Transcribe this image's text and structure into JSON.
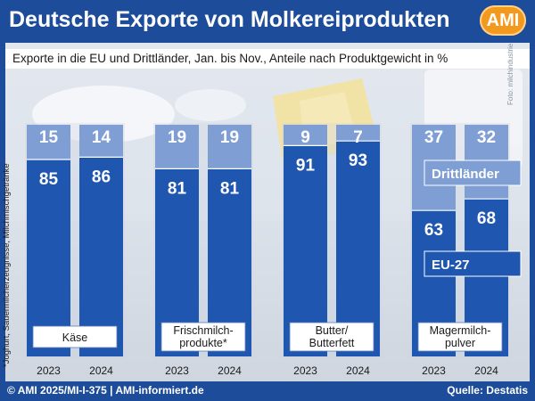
{
  "header": {
    "title": "Deutsche Exporte von Molkereiprodukten",
    "logo_text": "AMI"
  },
  "subtitle": "Exporte in die EU und Drittländer, Jan. bis Nov.,  Anteile nach Produktgewicht in %",
  "photo_credit": "Foto: milchindustrie",
  "footnote": "*Joghurt, Sauermilcherzeugnisse, Milchmischgetränke",
  "footer": {
    "left": "© AMI 2025/MI-I-375 | AMI-informiert.de",
    "right": "Quelle: Destatis"
  },
  "colors": {
    "background": "#1d4d9a",
    "eu27": "#1f56b0",
    "drittlaender": "#7f9fd4",
    "label_box": "#ffffff"
  },
  "chart_data": {
    "type": "bar",
    "stacked": true,
    "title": "Deutsche Exporte von Molkereiprodukten",
    "subtitle": "Exporte in die EU und Drittländer, Jan. bis Nov.,  Anteile nach Produktgewicht in %",
    "unit": "%",
    "ylim": [
      0,
      100
    ],
    "groups": [
      {
        "label": "Käse",
        "years": [
          "2023",
          "2024"
        ],
        "eu27": [
          85,
          86
        ],
        "drittlaender": [
          15,
          14
        ]
      },
      {
        "label": "Frischmilch-\nprodukte*",
        "years": [
          "2023",
          "2024"
        ],
        "eu27": [
          81,
          81
        ],
        "drittlaender": [
          19,
          19
        ]
      },
      {
        "label": "Butter/\nButterfett",
        "years": [
          "2023",
          "2024"
        ],
        "eu27": [
          91,
          93
        ],
        "drittlaender": [
          9,
          7
        ]
      },
      {
        "label": "Magermilch-\npulver",
        "years": [
          "2023",
          "2024"
        ],
        "eu27": [
          63,
          68
        ],
        "drittlaender": [
          37,
          32
        ]
      }
    ],
    "series": [
      {
        "name": "EU-27",
        "color": "#1f56b0"
      },
      {
        "name": "Drittländer",
        "color": "#7f9fd4"
      }
    ]
  }
}
